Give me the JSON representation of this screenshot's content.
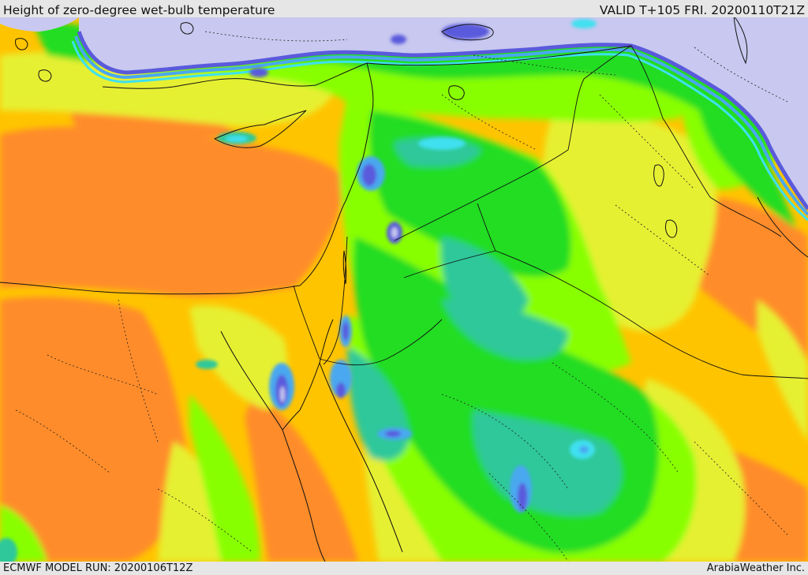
{
  "header": {
    "title": "Height of zero-degree wet-bulb temperature",
    "valid": "VALID T+105 FRI. 20200110T21Z"
  },
  "footer": {
    "model_run": "ECMWF MODEL RUN: 20200106T12Z",
    "credit": "ArabiaWeather Inc."
  },
  "palette": {
    "lowest": "#c8c8f0",
    "very_low": "#5a5adc",
    "low": "#4aa8f0",
    "low_mid": "#3fe0f0",
    "mid_low": "#2ec89a",
    "mid": "#22dd22",
    "mid_high": "#88ff00",
    "high": "#e6f032",
    "higher": "#ffc400",
    "highest": "#ff8c2a"
  },
  "map_features": {
    "coastlines": true,
    "country_borders": true,
    "province_borders_dotted": true
  }
}
